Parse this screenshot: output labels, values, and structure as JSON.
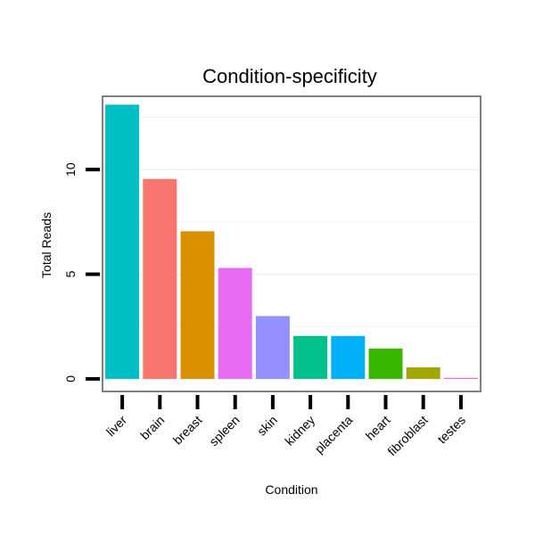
{
  "chart_data": {
    "type": "bar",
    "title": "Condition-specificity",
    "xlabel": "Condition",
    "ylabel": "Total Reads",
    "categories": [
      "liver",
      "brain",
      "breast",
      "spleen",
      "skin",
      "kidney",
      "placenta",
      "heart",
      "fibroblast",
      "testes"
    ],
    "values": [
      13.1,
      9.55,
      7.05,
      5.3,
      3.0,
      2.05,
      2.05,
      1.45,
      0.55,
      0.05
    ],
    "colors": [
      "#00BFC4",
      "#F8766D",
      "#D89000",
      "#E76BF3",
      "#9590FF",
      "#00C08B",
      "#00B0F6",
      "#39B600",
      "#A3A500",
      "#FF62BC"
    ],
    "ylim": [
      -0.6,
      13.5
    ],
    "yticks": [
      0,
      5,
      10
    ],
    "ytick_labels": [
      "0",
      "5",
      "10"
    ],
    "grid": true,
    "legend": "none"
  }
}
